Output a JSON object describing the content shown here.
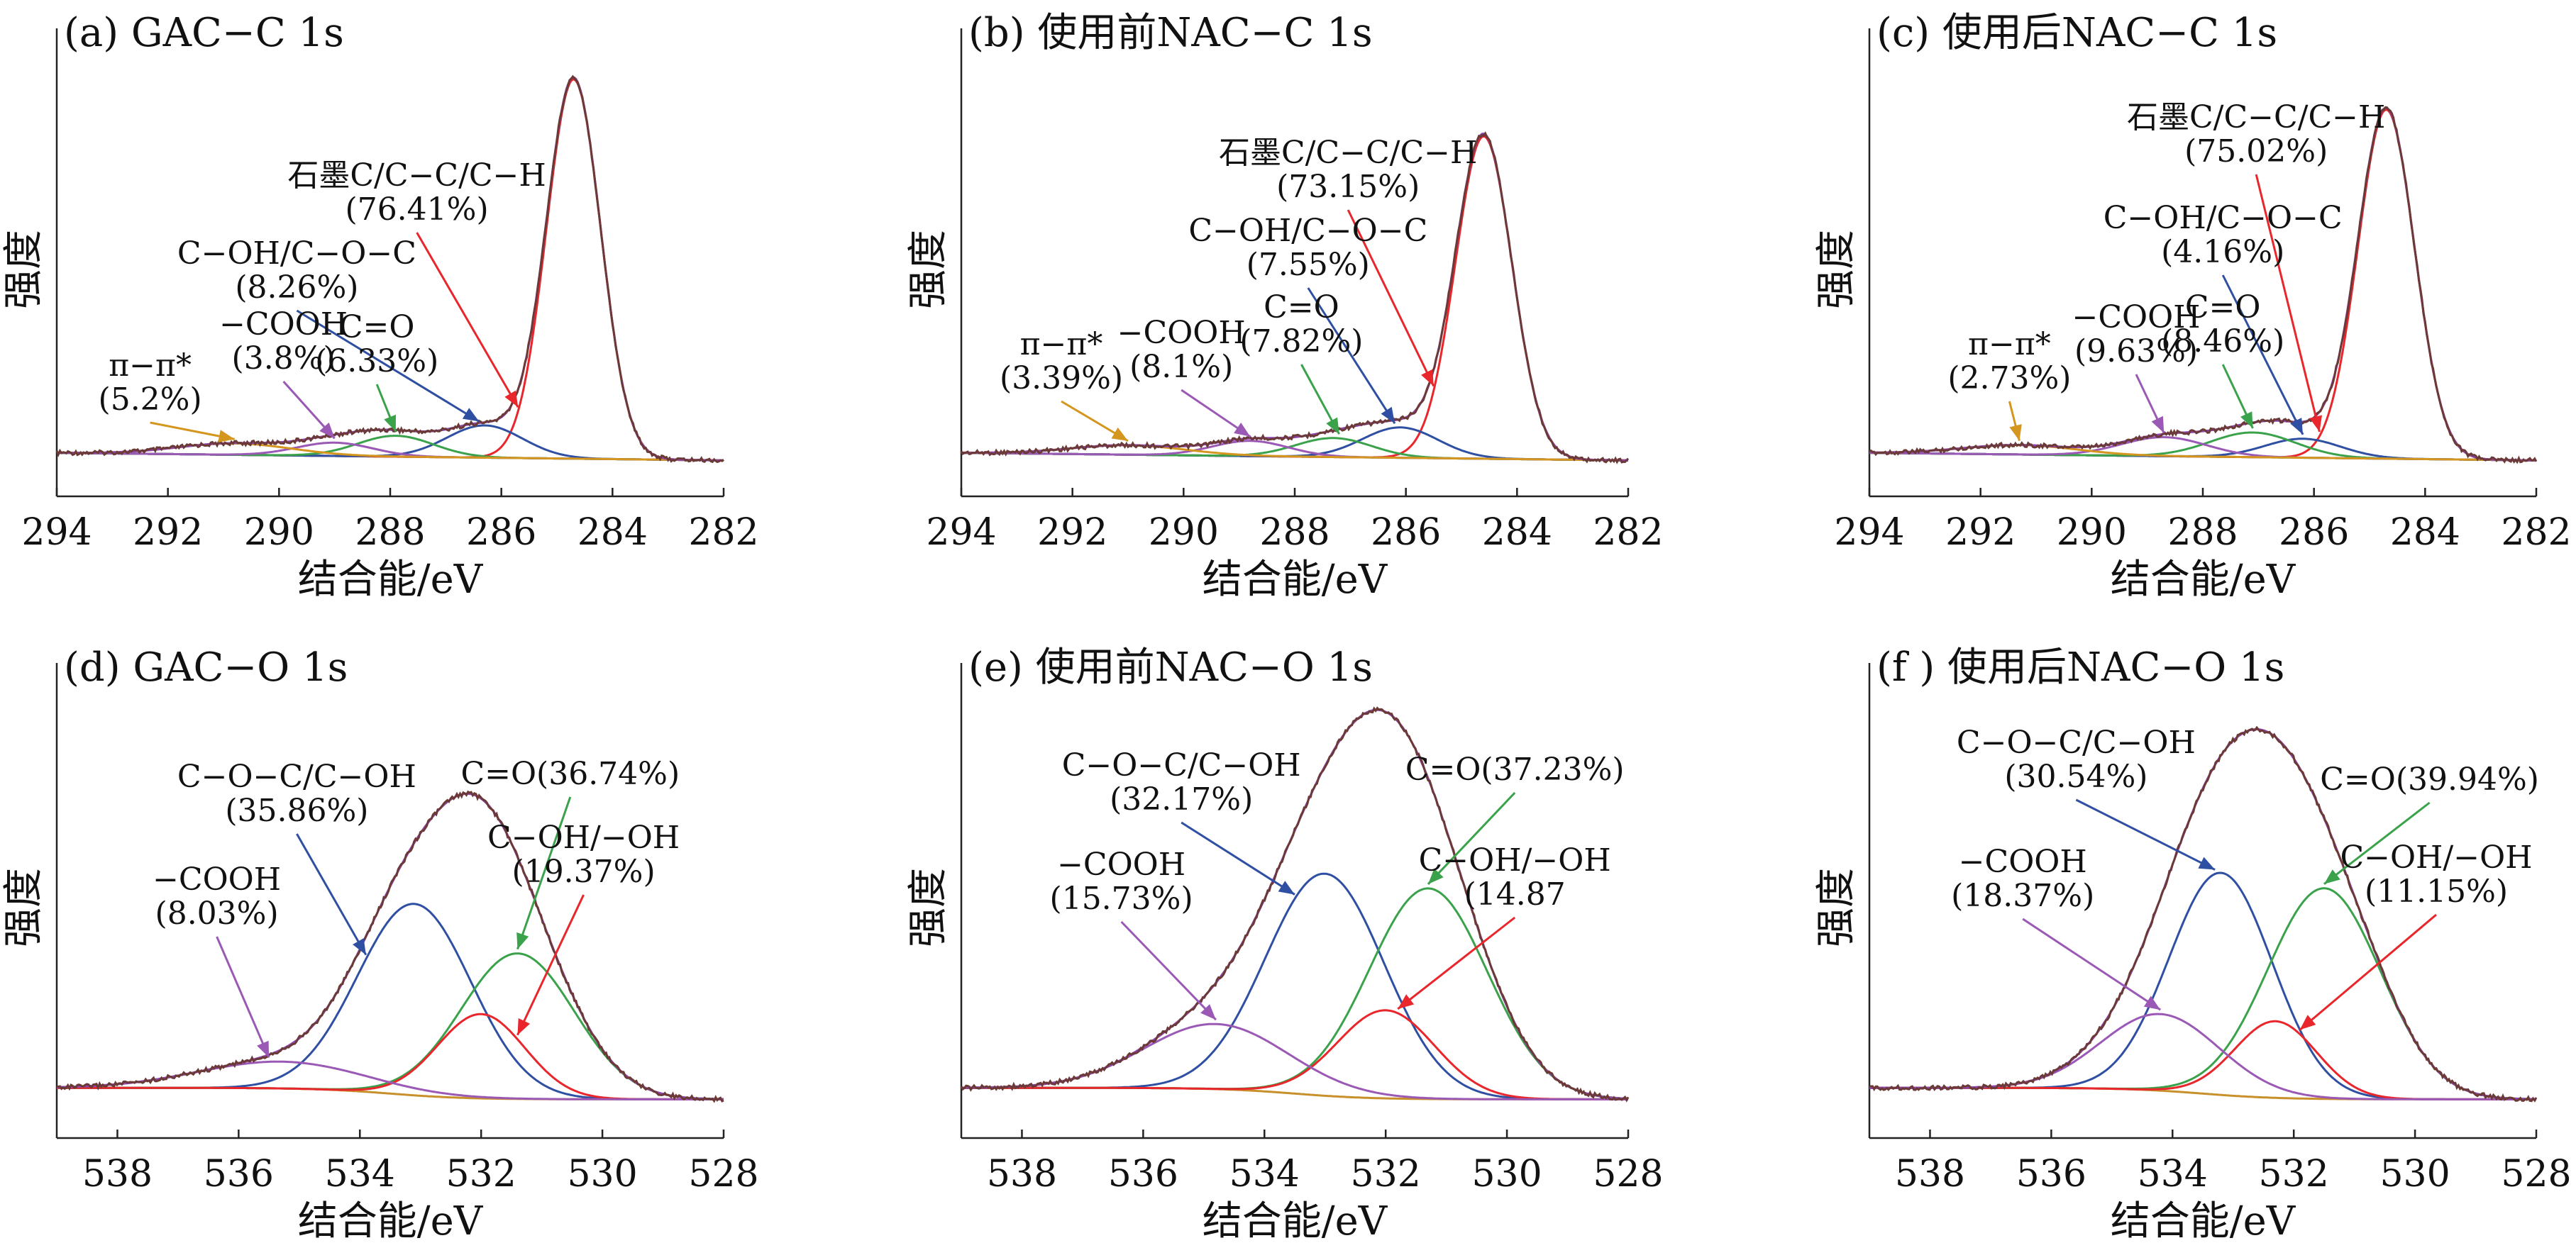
{
  "figure": {
    "y_axis_label": "强度",
    "x_axis_label": "结合能/eV"
  },
  "chart_data": [
    {
      "id": "a",
      "type": "line",
      "title": "(a)  GAC−C 1s",
      "xlabel": "结合能/eV",
      "ylabel": "强度",
      "xlim": [
        294,
        282
      ],
      "x_reversed": true,
      "xticks": [
        294,
        292,
        290,
        288,
        286,
        284,
        282
      ],
      "colors": {
        "envelope": "#6b3a36",
        "background": "#2aa58c",
        "fit_sum": "#8e44ad"
      },
      "series": [
        {
          "name": "石墨C/C−C/C−H",
          "color": "#e8262b",
          "center": 284.7,
          "fwhm": 1.15,
          "height": 1.0
        },
        {
          "name": "C−OH/C−O−C",
          "color": "#2f4fa2",
          "center": 286.3,
          "fwhm": 1.6,
          "height": 0.085
        },
        {
          "name": "C=O",
          "color": "#3aa24a",
          "center": 287.9,
          "fwhm": 1.6,
          "height": 0.055
        },
        {
          "name": "−COOH",
          "color": "#9b59b6",
          "center": 289.0,
          "fwhm": 1.6,
          "height": 0.035
        },
        {
          "name": "π−π*",
          "color": "#d4961e",
          "center": 290.8,
          "fwhm": 2.4,
          "height": 0.03
        }
      ],
      "annotations": [
        {
          "lines": [
            "石墨C/C−C/C−H",
            "(76.41%)"
          ],
          "color": "#e8262b",
          "points_to": 285.7
        },
        {
          "lines": [
            "C−OH/C−O−C",
            "(8.26%)"
          ],
          "color": "#2f4fa2",
          "points_to": 286.4
        },
        {
          "lines": [
            "C=O",
            "(6.33%)"
          ],
          "color": "#3aa24a",
          "points_to": 287.9
        },
        {
          "lines": [
            "−COOH",
            "(3.8%)"
          ],
          "color": "#9b59b6",
          "points_to": 289.0
        },
        {
          "lines": [
            "π−π*",
            "(5.2%)"
          ],
          "color": "#d4961e",
          "points_to": 290.8
        }
      ]
    },
    {
      "id": "b",
      "type": "line",
      "title": "(b)  使用前NAC−C 1s",
      "xlabel": "结合能/eV",
      "ylabel": "强度",
      "xlim": [
        294,
        282
      ],
      "x_reversed": true,
      "xticks": [
        294,
        292,
        290,
        288,
        286,
        284,
        282
      ],
      "colors": {
        "envelope": "#6b3a36",
        "background": "#2aa58c",
        "fit_sum": "#8e44ad"
      },
      "series": [
        {
          "name": "石墨C/C−C/C−H",
          "color": "#e8262b",
          "center": 284.6,
          "fwhm": 1.2,
          "height": 0.85
        },
        {
          "name": "C−OH/C−O−C",
          "color": "#2f4fa2",
          "center": 286.1,
          "fwhm": 1.6,
          "height": 0.08
        },
        {
          "name": "C=O",
          "color": "#3aa24a",
          "center": 287.3,
          "fwhm": 1.6,
          "height": 0.05
        },
        {
          "name": "−COOH",
          "color": "#9b59b6",
          "center": 288.8,
          "fwhm": 1.6,
          "height": 0.04
        },
        {
          "name": "π−π*",
          "color": "#d4961e",
          "center": 291.0,
          "fwhm": 2.4,
          "height": 0.025
        }
      ],
      "annotations": [
        {
          "lines": [
            "石墨C/C−C/C−H",
            "(73.15%)"
          ],
          "color": "#e8262b",
          "points_to": 285.5
        },
        {
          "lines": [
            "C−OH/C−O−C",
            "(7.55%)"
          ],
          "color": "#2f4fa2",
          "points_to": 286.2
        },
        {
          "lines": [
            "C=O",
            "(7.82%)"
          ],
          "color": "#3aa24a",
          "points_to": 287.2
        },
        {
          "lines": [
            "−COOH",
            "(8.1%)"
          ],
          "color": "#9b59b6",
          "points_to": 288.8
        },
        {
          "lines": [
            "π−π*",
            "(3.39%)"
          ],
          "color": "#d4961e",
          "points_to": 291.0
        }
      ]
    },
    {
      "id": "c",
      "type": "line",
      "title": "(c)  使用后NAC−C 1s",
      "xlabel": "结合能/eV",
      "ylabel": "强度",
      "xlim": [
        294,
        282
      ],
      "x_reversed": true,
      "xticks": [
        294,
        292,
        290,
        288,
        286,
        284,
        282
      ],
      "colors": {
        "envelope": "#6b3a36",
        "background": "#2aa58c",
        "fit_sum": "#8e44ad"
      },
      "series": [
        {
          "name": "石墨C/C−C/C−H",
          "color": "#e8262b",
          "center": 284.7,
          "fwhm": 1.2,
          "height": 0.92
        },
        {
          "name": "C−OH/C−O−C",
          "color": "#2f4fa2",
          "center": 286.2,
          "fwhm": 1.6,
          "height": 0.05
        },
        {
          "name": "C=O",
          "color": "#3aa24a",
          "center": 287.1,
          "fwhm": 1.8,
          "height": 0.065
        },
        {
          "name": "−COOH",
          "color": "#9b59b6",
          "center": 288.7,
          "fwhm": 1.8,
          "height": 0.05
        },
        {
          "name": "π−π*",
          "color": "#d4961e",
          "center": 291.3,
          "fwhm": 2.4,
          "height": 0.025
        }
      ],
      "annotations": [
        {
          "lines": [
            "石墨C/C−C/C−H",
            "(75.02%)"
          ],
          "color": "#e8262b",
          "points_to": 285.9
        },
        {
          "lines": [
            "C−OH/C−O−C",
            "(4.16%)"
          ],
          "color": "#2f4fa2",
          "points_to": 286.2
        },
        {
          "lines": [
            "C=O",
            "(8.46%)"
          ],
          "color": "#3aa24a",
          "points_to": 287.1
        },
        {
          "lines": [
            "−COOH",
            "(9.63%)"
          ],
          "color": "#9b59b6",
          "points_to": 288.7
        },
        {
          "lines": [
            "π−π*",
            "(2.73%)"
          ],
          "color": "#d4961e",
          "points_to": 291.3
        }
      ]
    },
    {
      "id": "d",
      "type": "line",
      "title": "(d)  GAC−O 1s",
      "xlabel": "结合能/eV",
      "ylabel": "强度",
      "xlim": [
        539,
        528
      ],
      "x_reversed": true,
      "xticks": [
        538,
        536,
        534,
        532,
        530,
        528
      ],
      "colors": {
        "envelope": "#6b3a36",
        "background": "#c8902a",
        "fit_sum": "#8e44ad"
      },
      "series": [
        {
          "name": "C−O−C/C−OH",
          "color": "#2f4fa2",
          "center": 533.1,
          "fwhm": 2.2,
          "height": 0.5
        },
        {
          "name": "C=O",
          "color": "#3aa24a",
          "center": 531.4,
          "fwhm": 2.2,
          "height": 0.38
        },
        {
          "name": "C−OH/−OH",
          "color": "#e8262b",
          "center": 532.0,
          "fwhm": 1.7,
          "height": 0.22
        },
        {
          "name": "−COOH",
          "color": "#9b59b6",
          "center": 535.3,
          "fwhm": 3.2,
          "height": 0.07
        }
      ],
      "annotations": [
        {
          "lines": [
            "C−O−C/C−OH",
            "(35.86%)"
          ],
          "color": "#2f4fa2",
          "points_to": 533.9
        },
        {
          "lines": [
            "C=O(36.74%)"
          ],
          "color": "#3aa24a",
          "points_to": 531.4
        },
        {
          "lines": [
            "C−OH/−OH",
            "(19.37%)"
          ],
          "color": "#e8262b",
          "points_to": 531.4
        },
        {
          "lines": [
            "−COOH",
            "(8.03%)"
          ],
          "color": "#9b59b6",
          "points_to": 535.5
        }
      ]
    },
    {
      "id": "e",
      "type": "line",
      "title": "(e)  使用前NAC−O 1s",
      "xlabel": "结合能/eV",
      "ylabel": "强度",
      "xlim": [
        539,
        528
      ],
      "x_reversed": true,
      "xticks": [
        538,
        536,
        534,
        532,
        530,
        528
      ],
      "colors": {
        "envelope": "#6b3a36",
        "background": "#c8902a",
        "fit_sum": "#8e44ad"
      },
      "series": [
        {
          "name": "C−O−C/C−OH",
          "color": "#2f4fa2",
          "center": 533.0,
          "fwhm": 2.3,
          "height": 0.58
        },
        {
          "name": "C=O",
          "color": "#3aa24a",
          "center": 531.3,
          "fwhm": 2.3,
          "height": 0.55
        },
        {
          "name": "C−OH/−OH",
          "color": "#e8262b",
          "center": 532.0,
          "fwhm": 1.9,
          "height": 0.23
        },
        {
          "name": "−COOH",
          "color": "#9b59b6",
          "center": 534.8,
          "fwhm": 2.8,
          "height": 0.17
        }
      ],
      "annotations": [
        {
          "lines": [
            "C−O−C/C−OH",
            "(32.17%)"
          ],
          "color": "#2f4fa2",
          "points_to": 533.5
        },
        {
          "lines": [
            "C=O(37.23%)"
          ],
          "color": "#3aa24a",
          "points_to": 531.3
        },
        {
          "lines": [
            "C−OH/−OH",
            "(14.87"
          ],
          "color": "#e8262b",
          "points_to": 531.8
        },
        {
          "lines": [
            "−COOH",
            "(15.73%)"
          ],
          "color": "#9b59b6",
          "points_to": 534.8
        }
      ]
    },
    {
      "id": "f",
      "type": "line",
      "title": "(f )  使用后NAC−O 1s",
      "xlabel": "结合能/eV",
      "ylabel": "强度",
      "xlim": [
        539,
        528
      ],
      "x_reversed": true,
      "xticks": [
        538,
        536,
        534,
        532,
        530,
        528
      ],
      "colors": {
        "envelope": "#6b3a36",
        "background": "#c8902a",
        "fit_sum": "#8e44ad"
      },
      "series": [
        {
          "name": "C−O−C/C−OH",
          "color": "#2f4fa2",
          "center": 533.2,
          "fwhm": 2.0,
          "height": 0.58
        },
        {
          "name": "C=O",
          "color": "#3aa24a",
          "center": 531.5,
          "fwhm": 2.2,
          "height": 0.55
        },
        {
          "name": "C−OH/−OH",
          "color": "#e8262b",
          "center": 532.3,
          "fwhm": 1.6,
          "height": 0.2
        },
        {
          "name": "−COOH",
          "color": "#9b59b6",
          "center": 534.2,
          "fwhm": 2.3,
          "height": 0.2
        }
      ],
      "annotations": [
        {
          "lines": [
            "C−O−C/C−OH",
            "(30.54%)"
          ],
          "color": "#2f4fa2",
          "points_to": 533.3
        },
        {
          "lines": [
            "C=O(39.94%)"
          ],
          "color": "#3aa24a",
          "points_to": 531.5
        },
        {
          "lines": [
            "C−OH/−OH",
            "(11.15%)"
          ],
          "color": "#e8262b",
          "points_to": 531.9
        },
        {
          "lines": [
            "−COOH",
            "(18.37%)"
          ],
          "color": "#9b59b6",
          "points_to": 534.2
        }
      ]
    }
  ]
}
